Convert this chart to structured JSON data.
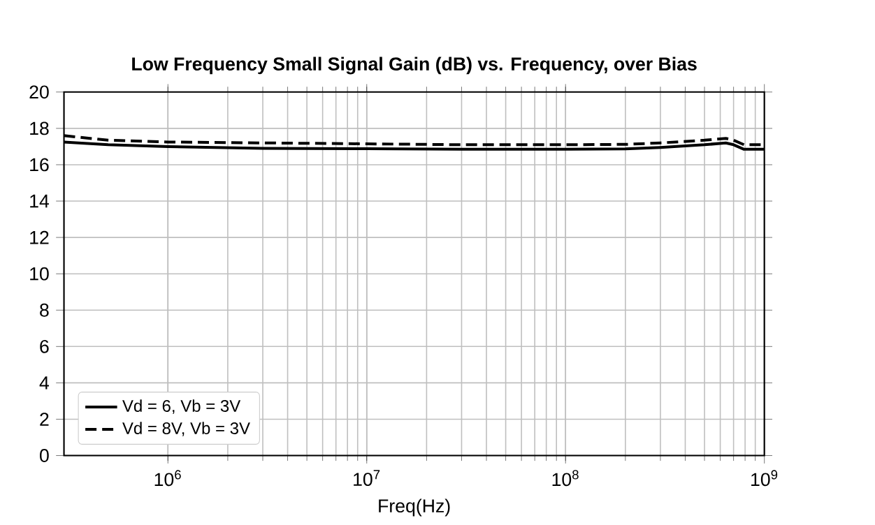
{
  "chart_data": {
    "type": "line",
    "title": "Low Frequency Small Signal Gain (dB) vs. Frequency, over Bias",
    "xlabel": "Freq(Hz)",
    "log": "x",
    "grid": true,
    "legend": "bottom left",
    "xlim": [
      300000,
      1000000000
    ],
    "ylim": [
      0,
      20
    ],
    "xticks": [
      {
        "value": 1000000,
        "label": "10$^{6}$"
      },
      {
        "value": 10000000,
        "label": "10$^{7}$"
      },
      {
        "value": 100000000,
        "label": "10$^{8}$"
      },
      {
        "value": 1000000000,
        "label": "10$^{9}$"
      }
    ],
    "yticks": [
      0,
      2,
      4,
      6,
      8,
      10,
      12,
      14,
      16,
      18,
      20
    ],
    "series": [
      {
        "name": "Vd = 6, Vb = 3V",
        "color": "#000000",
        "line_style": "solid",
        "x": [
          300000,
          500000,
          1000000,
          3000000,
          10000000,
          30000000,
          100000000,
          200000000,
          300000000,
          500000000,
          640000000,
          700000000,
          790000000,
          1000000000
        ],
        "values": [
          17.25,
          17.1,
          17.0,
          16.9,
          16.88,
          16.85,
          16.85,
          16.87,
          16.95,
          17.1,
          17.2,
          17.1,
          16.85,
          16.85
        ]
      },
      {
        "name": "Vd = 8V, Vb = 3V",
        "color": "#000000",
        "line_style": "dashed",
        "x": [
          300000,
          500000,
          1000000,
          3000000,
          10000000,
          30000000,
          100000000,
          200000000,
          300000000,
          500000000,
          640000000,
          700000000,
          790000000,
          1000000000
        ],
        "values": [
          17.6,
          17.35,
          17.25,
          17.2,
          17.15,
          17.1,
          17.1,
          17.12,
          17.2,
          17.35,
          17.45,
          17.35,
          17.1,
          17.1
        ]
      }
    ]
  }
}
